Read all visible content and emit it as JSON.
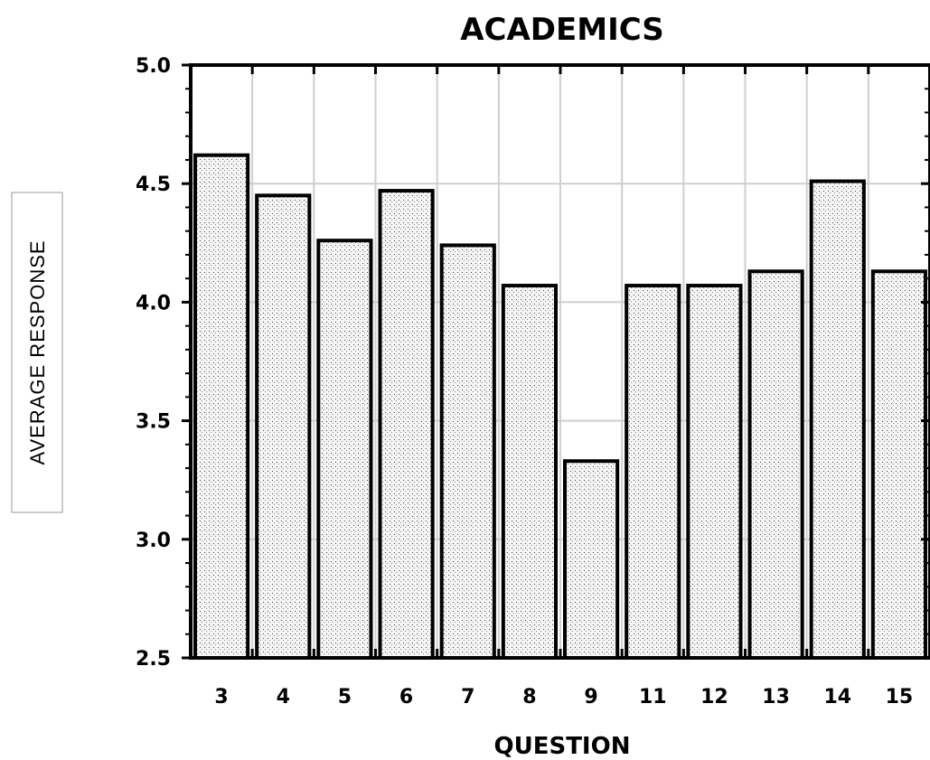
{
  "chart_data": {
    "type": "bar",
    "title": "ACADEMICS",
    "xlabel": "QUESTION",
    "ylabel": "AVERAGE RESPONSE",
    "categories": [
      "3",
      "4",
      "5",
      "6",
      "7",
      "8",
      "9",
      "11",
      "12",
      "13",
      "14",
      "15"
    ],
    "values": [
      4.62,
      4.45,
      4.26,
      4.47,
      4.24,
      4.07,
      3.33,
      4.07,
      4.07,
      4.13,
      4.51,
      4.13
    ],
    "ylim": [
      2.5,
      5.0
    ],
    "yticks": [
      "2.5",
      "3.0",
      "3.5",
      "4.0",
      "4.5",
      "5.0"
    ],
    "grid": true,
    "bar_fill": "#f4f4f4",
    "stroke": "#000000",
    "grid_color": "#cfcfcf"
  }
}
